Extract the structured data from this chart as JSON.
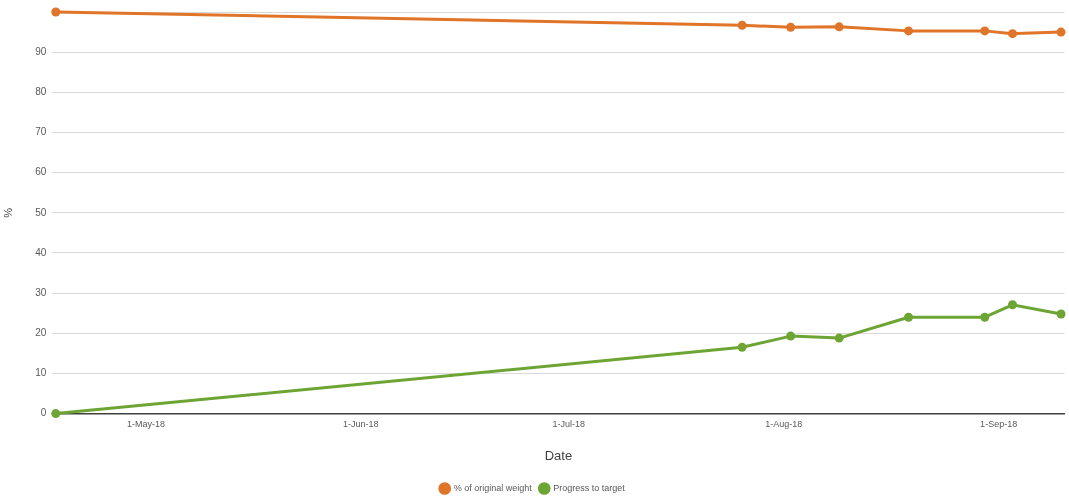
{
  "chart_data": {
    "type": "line",
    "xlabel": "Date",
    "ylabel": "%",
    "x": [
      "2018-04-18",
      "2018-07-26",
      "2018-08-02",
      "2018-08-09",
      "2018-08-19",
      "2018-08-30",
      "2018-09-03",
      "2018-09-10"
    ],
    "series": [
      {
        "name": "% of original weight",
        "color": "#e07428",
        "values": [
          100,
          96.7,
          96.2,
          96.3,
          95.3,
          95.3,
          94.6,
          95.0
        ]
      },
      {
        "name": "Progress to target",
        "color": "#6da534",
        "values": [
          0,
          16.5,
          19.3,
          18.8,
          24,
          24,
          27.1,
          24.8
        ]
      }
    ],
    "xlim": [
      "2018-04-17T12:00",
      "2018-09-10T12:00"
    ],
    "xticks": [
      {
        "value": "2018-05-01",
        "label": "1-May-18"
      },
      {
        "value": "2018-06-01",
        "label": "1-Jun-18"
      },
      {
        "value": "2018-07-01",
        "label": "1-Jul-18"
      },
      {
        "value": "2018-08-01",
        "label": "1-Aug-18"
      },
      {
        "value": "2018-09-01",
        "label": "1-Sep-18"
      }
    ],
    "ylim": [
      0,
      100
    ],
    "yticks": [
      0,
      10,
      20,
      30,
      40,
      50,
      60,
      70,
      80,
      90,
      {
        "value": 100,
        "label": null
      }
    ],
    "grid": "y",
    "legend": "bottom",
    "marker": "circle",
    "line_style": "solid"
  }
}
